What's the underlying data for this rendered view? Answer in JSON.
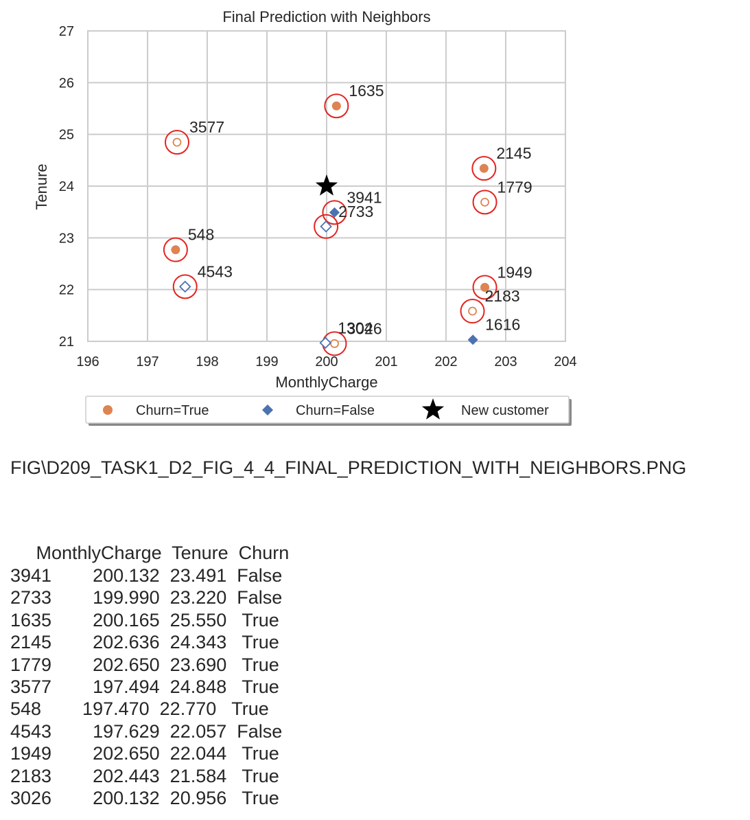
{
  "chart_data": {
    "type": "scatter",
    "title": "Final Prediction with Neighbors",
    "xlabel": "MonthlyCharge",
    "ylabel": "Tenure",
    "xlim": [
      196,
      204
    ],
    "ylim": [
      21,
      27
    ],
    "xticks": [
      "196",
      "197",
      "198",
      "199",
      "200",
      "201",
      "202",
      "203",
      "204"
    ],
    "yticks": [
      "21",
      "22",
      "23",
      "24",
      "25",
      "26",
      "27"
    ],
    "grid": true,
    "legend_position": "bottom-center",
    "legend": [
      {
        "label": "Churn=True",
        "marker": "circle",
        "color": "#dd8452"
      },
      {
        "label": "Churn=False",
        "marker": "diamond",
        "color": "#4c72b0"
      },
      {
        "label": "New customer",
        "marker": "star",
        "color": "#000000"
      }
    ],
    "colors": {
      "churn_true": "#dd8452",
      "churn_false": "#4c72b0",
      "neighbor_ring": "#e3231e",
      "new_customer": "#000000",
      "grid": "#cccccc"
    },
    "new_customer": {
      "x": 200.0,
      "y": 24.0
    },
    "series": [
      {
        "name": "Churn=True",
        "points": [
          {
            "id": "1635",
            "x": 200.165,
            "y": 25.55,
            "filled": true
          },
          {
            "id": "2145",
            "x": 202.636,
            "y": 24.343,
            "filled": true
          },
          {
            "id": "1779",
            "x": 202.65,
            "y": 23.69,
            "filled": false
          },
          {
            "id": "3577",
            "x": 197.494,
            "y": 24.848,
            "filled": false
          },
          {
            "id": "548",
            "x": 197.47,
            "y": 22.77,
            "filled": true
          },
          {
            "id": "1949",
            "x": 202.65,
            "y": 22.044,
            "filled": true
          },
          {
            "id": "2183",
            "x": 202.443,
            "y": 21.584,
            "filled": false
          },
          {
            "id": "3026",
            "x": 200.132,
            "y": 20.956,
            "filled": false
          }
        ]
      },
      {
        "name": "Churn=False",
        "points": [
          {
            "id": "3941",
            "x": 200.132,
            "y": 23.491,
            "filled": true
          },
          {
            "id": "2733",
            "x": 199.99,
            "y": 23.22,
            "filled": false
          },
          {
            "id": "4543",
            "x": 197.629,
            "y": 22.057,
            "filled": false
          },
          {
            "id": "1616",
            "x": 202.45,
            "y": 21.03,
            "filled": true
          },
          {
            "id": "1304",
            "x": 199.98,
            "y": 20.97,
            "filled": false
          }
        ]
      }
    ],
    "neighbor_ids": [
      "3941",
      "2733",
      "1635",
      "2145",
      "1779",
      "3577",
      "548",
      "4543",
      "1949",
      "2183",
      "3026"
    ]
  },
  "caption": "FIG\\D209_TASK1_D2_FIG_4_4_FINAL_PREDICTION_WITH_NEIGHBORS.PNG",
  "table": {
    "header": "     MonthlyCharge  Tenure  Churn",
    "rows": [
      "3941        200.132  23.491  False",
      "2733        199.990  23.220  False",
      "1635        200.165  25.550   True",
      "2145        202.636  24.343   True",
      "1779        202.650  23.690   True",
      "3577        197.494  24.848   True",
      "548        197.470  22.770   True",
      "4543        197.629  22.057  False",
      "1949        202.650  22.044   True",
      "2183        202.443  21.584   True",
      "3026        200.132  20.956   True"
    ]
  }
}
